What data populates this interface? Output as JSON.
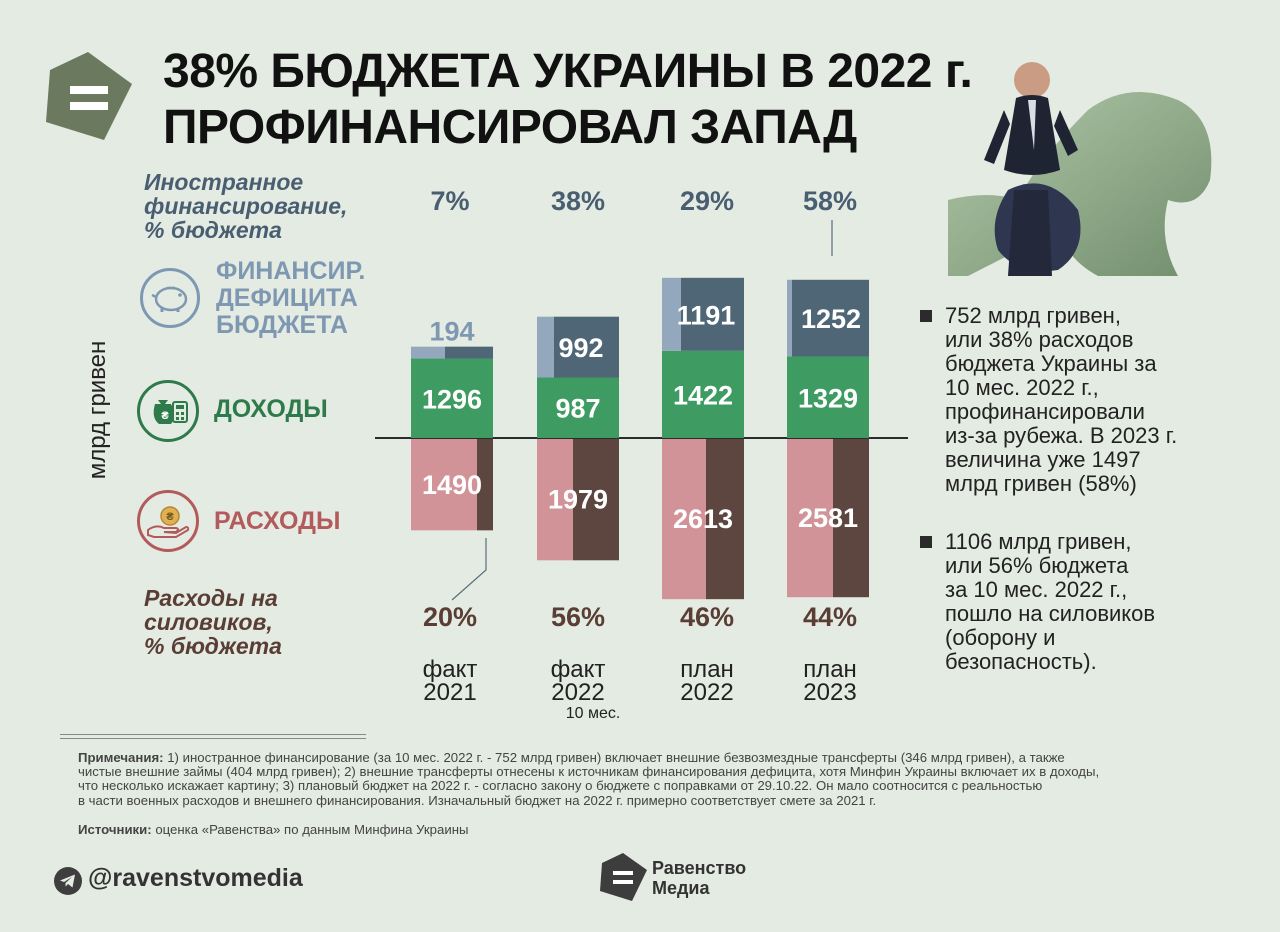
{
  "title": {
    "line1": "38% БЮДЖЕТА УКРАИНЫ В 2022 г.",
    "line2": "ПРОФИНАНСИРОВАЛ ЗАПАД"
  },
  "labels": {
    "foreign_financing": [
      "Иностранное",
      "финансирование,",
      "% бюджета"
    ],
    "deficit": [
      "ФИНАНСИР.",
      "ДЕФИЦИТА",
      "БЮДЖЕТА"
    ],
    "revenue": "ДОХОДЫ",
    "expenses": "РАСХОДЫ",
    "security_spending": [
      "Расходы на",
      "силовиков,",
      "% бюджета"
    ],
    "yaxis": "млрд гривен"
  },
  "columns": [
    {
      "line1": "факт",
      "line2": "2021",
      "sub": ""
    },
    {
      "line1": "факт",
      "line2": "2022",
      "sub": "10 мес."
    },
    {
      "line1": "план",
      "line2": "2022",
      "sub": ""
    },
    {
      "line1": "план",
      "line2": "2023",
      "sub": ""
    }
  ],
  "chart_data": {
    "type": "bar",
    "categories": [
      "факт 2021",
      "факт 2022 10 мес.",
      "план 2022",
      "план 2023"
    ],
    "series": [
      {
        "name": "ФИНАНСИР. ДЕФИЦИТА БЮДЖЕТА",
        "values": [
          194,
          992,
          1191,
          1252
        ],
        "color": "#4f6677"
      },
      {
        "name": "ДОХОДЫ",
        "values": [
          1296,
          987,
          1422,
          1329
        ],
        "color": "#3e9b62"
      },
      {
        "name": "РАСХОДЫ",
        "values": [
          1490,
          1979,
          2613,
          2581
        ],
        "color": "#5e4640"
      }
    ],
    "deficit_domestic_share": [
      0.42,
      0.21,
      0.23,
      0.06
    ],
    "security_share_of_expenses": [
      0.2,
      0.56,
      0.46,
      0.44
    ],
    "foreign_financing_pct": [
      "7%",
      "38%",
      "29%",
      "58%"
    ],
    "security_spending_pct": [
      "20%",
      "56%",
      "46%",
      "44%"
    ],
    "ylabel": "млрд гривен"
  },
  "bullets": [
    [
      "752 млрд гривен,",
      "или 38% расходов",
      "бюджета Украины за",
      "10 мес. 2022 г.,",
      "профинансировали",
      "из-за рубежа. В 2023 г.",
      "величина уже 1497",
      "млрд гривен (58%)"
    ],
    [
      "1106 млрд гривен,",
      "или 56% бюджета",
      "за 10 мес. 2022 г.,",
      "пошло на силовиков",
      "(оборону и",
      "безопасность)."
    ]
  ],
  "notes": {
    "label": "Примечания:",
    "lines": [
      " 1) иностранное финансирование (за 10 мес. 2022 г. - 752 млрд гривен) включает внешние безвозмездные трансферты (346 млрд гривен), а также",
      "чистые внешние займы (404 млрд гривен); 2) внешние трансферты отнесены к источникам финансирования дефицита, хотя Минфин Украины включает их в доходы,",
      "что несколько искажает картину; 3) плановый бюджет на 2022 г. - согласно закону о бюджете с поправками от 29.10.22. Он мало соотносится с реальностью",
      "в части военных расходов и внешнего финансирования. Изначальный бюджет на 2022 г. примерно соответствует смете за 2021 г."
    ]
  },
  "sources": {
    "label": "Источники:",
    "text": " оценка «Равенства» по данным Минфина Украины"
  },
  "footer": {
    "handle": "@ravenstvomedia",
    "brand_line1": "Равенство",
    "brand_line2": "Медиа"
  },
  "colors": {
    "accent_olive": "#6b7a5e",
    "deficit_light": "#93a8bd",
    "deficit_dark": "#4f6677",
    "revenue": "#3e9b62",
    "expense_light": "#d29398",
    "expense_dark": "#5e4640",
    "foreign_text": "#4a5e72",
    "deficit_text": "#7f98b2",
    "revenue_text": "#2f7a4a",
    "expense_text": "#b25a5c",
    "security_text": "#5a3e35"
  },
  "icons": [
    "equals-logo-icon",
    "piggy-bank-icon",
    "money-bag-calculator-icon",
    "hand-coin-icon",
    "telegram-icon"
  ]
}
